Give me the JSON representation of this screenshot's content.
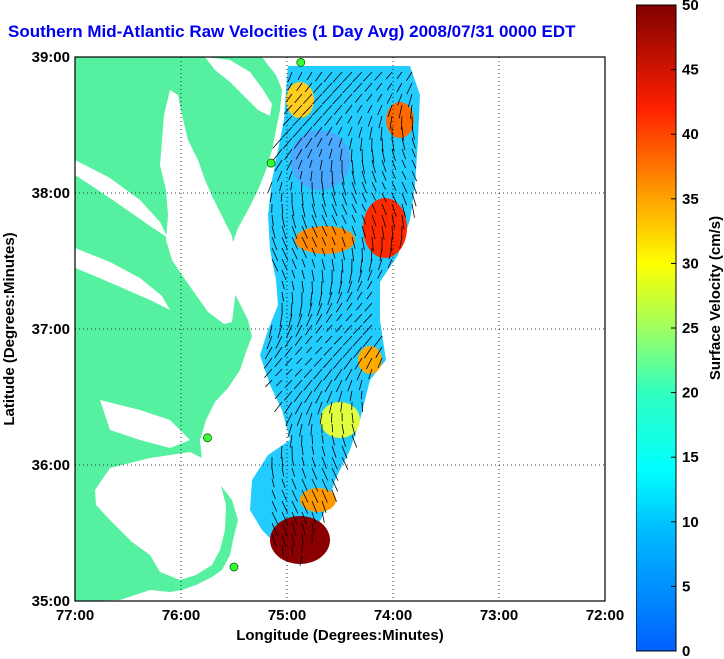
{
  "title": "Southern Mid-Atlantic Raw Velocities (1 Day Avg) 2008/07/31 0000 EDT",
  "xlabel": "Longitude (Degrees:Minutes)",
  "ylabel": "Latitude (Degrees:Minutes)",
  "colorbar_label": "Surface Velocity (cm/s)",
  "x_ticks": [
    "77:00",
    "76:00",
    "75:00",
    "74:00",
    "73:00",
    "72:00"
  ],
  "y_ticks": [
    "39:00",
    "38:00",
    "37:00",
    "36:00",
    "35:00"
  ],
  "colorbar_ticks": [
    "0",
    "5",
    "10",
    "15",
    "20",
    "25",
    "30",
    "35",
    "40",
    "45",
    "50"
  ],
  "colors": {
    "land": "#55f0a0",
    "title": "#0000ee",
    "arrows": "#000000",
    "contour": "#9a9a9a"
  },
  "chart_data": {
    "type": "heatmap",
    "title": "Southern Mid-Atlantic Raw Velocities (1 Day Avg) 2008/07/31 0000 EDT",
    "xlabel": "Longitude (Degrees:Minutes)",
    "ylabel": "Latitude (Degrees:Minutes)",
    "xlim": [
      -77,
      -72
    ],
    "ylim": [
      35,
      39
    ],
    "colorbar": {
      "label": "Surface Velocity (cm/s)",
      "range": [
        0,
        50
      ],
      "colormap": "jet"
    },
    "grid": true,
    "stations": [
      [
        -74.87,
        38.96
      ],
      [
        -75.15,
        38.22
      ],
      [
        -75.75,
        36.2
      ],
      [
        -75.5,
        35.25
      ]
    ]
  }
}
